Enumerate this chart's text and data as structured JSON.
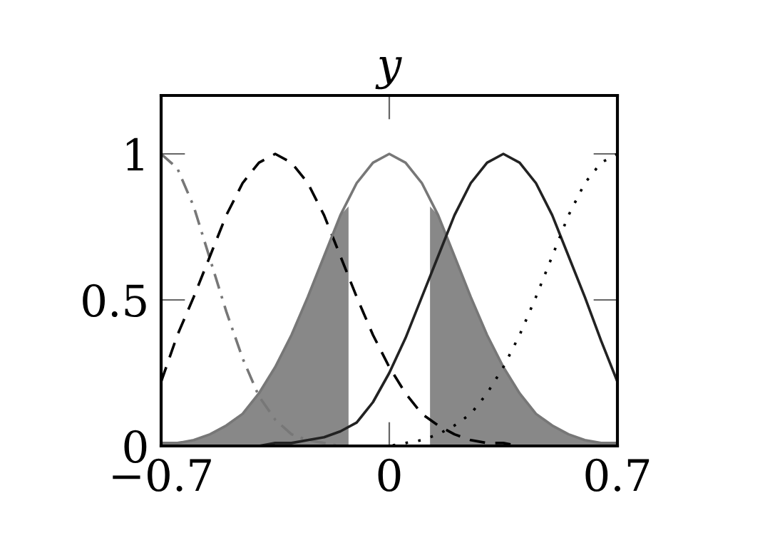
{
  "chart_data": {
    "type": "line",
    "title": "y",
    "x": [
      -0.7,
      -0.65,
      -0.6,
      -0.55,
      -0.5,
      -0.45,
      -0.4,
      -0.35,
      -0.3,
      -0.25,
      -0.2,
      -0.15,
      -0.1,
      -0.05,
      0,
      0.05,
      0.1,
      0.15,
      0.2,
      0.25,
      0.3,
      0.35,
      0.4,
      0.45,
      0.5,
      0.55,
      0.6,
      0.65,
      0.7
    ],
    "series": [
      {
        "type": "area",
        "color": "#888888",
        "x": [
          -0.7,
          -0.65,
          -0.6,
          -0.55,
          -0.5,
          -0.45,
          -0.4,
          -0.35,
          -0.3,
          -0.25,
          -0.2,
          -0.15,
          -0.125
        ],
        "values": [
          0.01,
          0.01,
          0.02,
          0.04,
          0.07,
          0.11,
          0.18,
          0.27,
          0.38,
          0.51,
          0.65,
          0.79,
          0.82
        ]
      },
      {
        "type": "area",
        "color": "#888888",
        "x": [
          0.125,
          0.15,
          0.2,
          0.25,
          0.3,
          0.35,
          0.4,
          0.45,
          0.5,
          0.55,
          0.6,
          0.65,
          0.7
        ],
        "values": [
          0.82,
          0.79,
          0.65,
          0.51,
          0.38,
          0.27,
          0.18,
          0.11,
          0.07,
          0.04,
          0.02,
          0.01,
          0.01
        ]
      },
      {
        "color": "#777777",
        "line_style": "dashdot",
        "values": [
          1,
          0.95,
          0.82,
          0.64,
          0.46,
          0.3,
          0.17,
          0.09,
          0.04,
          0.02,
          0.01,
          0,
          null,
          null,
          null,
          null,
          null,
          null,
          null,
          null,
          null,
          null,
          null,
          null,
          null,
          null,
          null,
          null,
          null
        ]
      },
      {
        "color": "#000000",
        "line_style": "dashed",
        "values": [
          0.22,
          0.38,
          0.51,
          0.65,
          0.79,
          0.9,
          0.97,
          1,
          0.97,
          0.9,
          0.79,
          0.65,
          0.51,
          0.38,
          0.27,
          0.18,
          0.11,
          0.07,
          0.04,
          0.02,
          0.01,
          0.01,
          0,
          0,
          0,
          0,
          0,
          0,
          0
        ]
      },
      {
        "color": "#777777",
        "line_style": "solid",
        "values": [
          0.01,
          0.01,
          0.02,
          0.04,
          0.07,
          0.11,
          0.18,
          0.27,
          0.38,
          0.51,
          0.65,
          0.79,
          0.9,
          0.97,
          1,
          0.97,
          0.9,
          0.79,
          0.65,
          0.51,
          0.38,
          0.27,
          0.18,
          0.11,
          0.07,
          0.04,
          0.02,
          0.01,
          0.01
        ]
      },
      {
        "color": "#222222",
        "line_style": "solid",
        "values": [
          0,
          0,
          0,
          0,
          0,
          0,
          0,
          0.01,
          0.01,
          0.02,
          0.03,
          0.05,
          0.08,
          0.15,
          0.25,
          0.37,
          0.51,
          0.65,
          0.79,
          0.9,
          0.97,
          1,
          0.97,
          0.9,
          0.79,
          0.65,
          0.51,
          0.36,
          0.22
        ]
      },
      {
        "color": "#000000",
        "line_style": "dotted",
        "values": [
          0,
          0,
          0,
          0,
          0,
          0,
          0,
          0,
          0,
          0,
          0,
          0,
          0,
          0,
          0,
          0.01,
          0.02,
          0.04,
          0.07,
          0.11,
          0.18,
          0.27,
          0.38,
          0.51,
          0.65,
          0.79,
          0.9,
          0.97,
          1
        ]
      }
    ],
    "xlim": [
      -0.7,
      0.7
    ],
    "ylim": [
      0,
      1.2
    ],
    "xticks": [
      {
        "value": -0.7,
        "label": "−0.7"
      },
      0,
      0.7
    ],
    "yticks": [
      0,
      0.5,
      1
    ],
    "marker": "none",
    "grid": false
  }
}
